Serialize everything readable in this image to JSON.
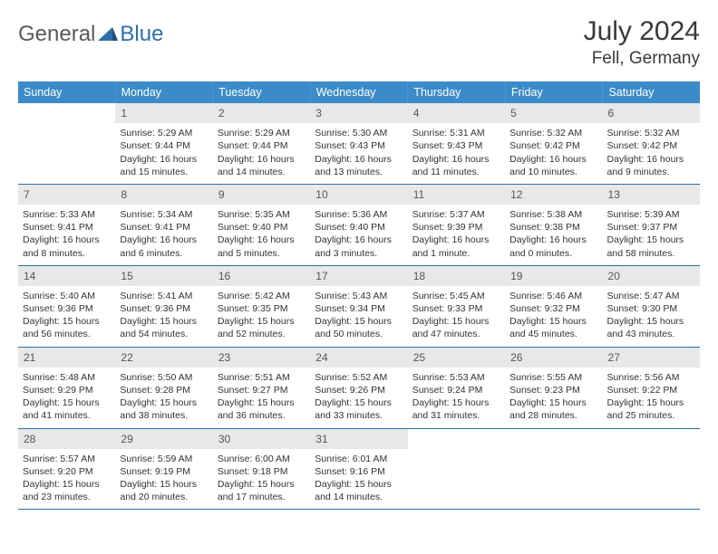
{
  "logo": {
    "part1": "General",
    "part2": "Blue"
  },
  "title": "July 2024",
  "location": "Fell, Germany",
  "colors": {
    "header_bg": "#3b8bc9",
    "header_text": "#ffffff",
    "daynum_bg": "#e8e8e8",
    "daynum_text": "#555555",
    "body_text": "#333333",
    "week_divider": "#2f6fa8",
    "logo_gray": "#5a5a5a",
    "logo_blue": "#2f6fa8"
  },
  "day_labels": [
    "Sunday",
    "Monday",
    "Tuesday",
    "Wednesday",
    "Thursday",
    "Friday",
    "Saturday"
  ],
  "weeks": [
    [
      {
        "num": "",
        "sunrise": "",
        "sunset": "",
        "daylight": ""
      },
      {
        "num": "1",
        "sunrise": "Sunrise: 5:29 AM",
        "sunset": "Sunset: 9:44 PM",
        "daylight": "Daylight: 16 hours and 15 minutes."
      },
      {
        "num": "2",
        "sunrise": "Sunrise: 5:29 AM",
        "sunset": "Sunset: 9:44 PM",
        "daylight": "Daylight: 16 hours and 14 minutes."
      },
      {
        "num": "3",
        "sunrise": "Sunrise: 5:30 AM",
        "sunset": "Sunset: 9:43 PM",
        "daylight": "Daylight: 16 hours and 13 minutes."
      },
      {
        "num": "4",
        "sunrise": "Sunrise: 5:31 AM",
        "sunset": "Sunset: 9:43 PM",
        "daylight": "Daylight: 16 hours and 11 minutes."
      },
      {
        "num": "5",
        "sunrise": "Sunrise: 5:32 AM",
        "sunset": "Sunset: 9:42 PM",
        "daylight": "Daylight: 16 hours and 10 minutes."
      },
      {
        "num": "6",
        "sunrise": "Sunrise: 5:32 AM",
        "sunset": "Sunset: 9:42 PM",
        "daylight": "Daylight: 16 hours and 9 minutes."
      }
    ],
    [
      {
        "num": "7",
        "sunrise": "Sunrise: 5:33 AM",
        "sunset": "Sunset: 9:41 PM",
        "daylight": "Daylight: 16 hours and 8 minutes."
      },
      {
        "num": "8",
        "sunrise": "Sunrise: 5:34 AM",
        "sunset": "Sunset: 9:41 PM",
        "daylight": "Daylight: 16 hours and 6 minutes."
      },
      {
        "num": "9",
        "sunrise": "Sunrise: 5:35 AM",
        "sunset": "Sunset: 9:40 PM",
        "daylight": "Daylight: 16 hours and 5 minutes."
      },
      {
        "num": "10",
        "sunrise": "Sunrise: 5:36 AM",
        "sunset": "Sunset: 9:40 PM",
        "daylight": "Daylight: 16 hours and 3 minutes."
      },
      {
        "num": "11",
        "sunrise": "Sunrise: 5:37 AM",
        "sunset": "Sunset: 9:39 PM",
        "daylight": "Daylight: 16 hours and 1 minute."
      },
      {
        "num": "12",
        "sunrise": "Sunrise: 5:38 AM",
        "sunset": "Sunset: 9:38 PM",
        "daylight": "Daylight: 16 hours and 0 minutes."
      },
      {
        "num": "13",
        "sunrise": "Sunrise: 5:39 AM",
        "sunset": "Sunset: 9:37 PM",
        "daylight": "Daylight: 15 hours and 58 minutes."
      }
    ],
    [
      {
        "num": "14",
        "sunrise": "Sunrise: 5:40 AM",
        "sunset": "Sunset: 9:36 PM",
        "daylight": "Daylight: 15 hours and 56 minutes."
      },
      {
        "num": "15",
        "sunrise": "Sunrise: 5:41 AM",
        "sunset": "Sunset: 9:36 PM",
        "daylight": "Daylight: 15 hours and 54 minutes."
      },
      {
        "num": "16",
        "sunrise": "Sunrise: 5:42 AM",
        "sunset": "Sunset: 9:35 PM",
        "daylight": "Daylight: 15 hours and 52 minutes."
      },
      {
        "num": "17",
        "sunrise": "Sunrise: 5:43 AM",
        "sunset": "Sunset: 9:34 PM",
        "daylight": "Daylight: 15 hours and 50 minutes."
      },
      {
        "num": "18",
        "sunrise": "Sunrise: 5:45 AM",
        "sunset": "Sunset: 9:33 PM",
        "daylight": "Daylight: 15 hours and 47 minutes."
      },
      {
        "num": "19",
        "sunrise": "Sunrise: 5:46 AM",
        "sunset": "Sunset: 9:32 PM",
        "daylight": "Daylight: 15 hours and 45 minutes."
      },
      {
        "num": "20",
        "sunrise": "Sunrise: 5:47 AM",
        "sunset": "Sunset: 9:30 PM",
        "daylight": "Daylight: 15 hours and 43 minutes."
      }
    ],
    [
      {
        "num": "21",
        "sunrise": "Sunrise: 5:48 AM",
        "sunset": "Sunset: 9:29 PM",
        "daylight": "Daylight: 15 hours and 41 minutes."
      },
      {
        "num": "22",
        "sunrise": "Sunrise: 5:50 AM",
        "sunset": "Sunset: 9:28 PM",
        "daylight": "Daylight: 15 hours and 38 minutes."
      },
      {
        "num": "23",
        "sunrise": "Sunrise: 5:51 AM",
        "sunset": "Sunset: 9:27 PM",
        "daylight": "Daylight: 15 hours and 36 minutes."
      },
      {
        "num": "24",
        "sunrise": "Sunrise: 5:52 AM",
        "sunset": "Sunset: 9:26 PM",
        "daylight": "Daylight: 15 hours and 33 minutes."
      },
      {
        "num": "25",
        "sunrise": "Sunrise: 5:53 AM",
        "sunset": "Sunset: 9:24 PM",
        "daylight": "Daylight: 15 hours and 31 minutes."
      },
      {
        "num": "26",
        "sunrise": "Sunrise: 5:55 AM",
        "sunset": "Sunset: 9:23 PM",
        "daylight": "Daylight: 15 hours and 28 minutes."
      },
      {
        "num": "27",
        "sunrise": "Sunrise: 5:56 AM",
        "sunset": "Sunset: 9:22 PM",
        "daylight": "Daylight: 15 hours and 25 minutes."
      }
    ],
    [
      {
        "num": "28",
        "sunrise": "Sunrise: 5:57 AM",
        "sunset": "Sunset: 9:20 PM",
        "daylight": "Daylight: 15 hours and 23 minutes."
      },
      {
        "num": "29",
        "sunrise": "Sunrise: 5:59 AM",
        "sunset": "Sunset: 9:19 PM",
        "daylight": "Daylight: 15 hours and 20 minutes."
      },
      {
        "num": "30",
        "sunrise": "Sunrise: 6:00 AM",
        "sunset": "Sunset: 9:18 PM",
        "daylight": "Daylight: 15 hours and 17 minutes."
      },
      {
        "num": "31",
        "sunrise": "Sunrise: 6:01 AM",
        "sunset": "Sunset: 9:16 PM",
        "daylight": "Daylight: 15 hours and 14 minutes."
      },
      {
        "num": "",
        "sunrise": "",
        "sunset": "",
        "daylight": ""
      },
      {
        "num": "",
        "sunrise": "",
        "sunset": "",
        "daylight": ""
      },
      {
        "num": "",
        "sunrise": "",
        "sunset": "",
        "daylight": ""
      }
    ]
  ]
}
